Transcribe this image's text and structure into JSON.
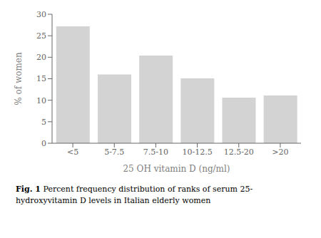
{
  "chart_data": {
    "type": "bar",
    "categories": [
      "<5",
      "5-7.5",
      "7.5-10",
      "10-12.5",
      "12.5-20",
      ">20"
    ],
    "values": [
      27.2,
      16.0,
      20.4,
      15.1,
      10.6,
      11.1
    ],
    "color": "#d3d3d3",
    "xlabel": "25 OH vitamin D (ng/ml)",
    "ylabel": "% of women",
    "ylim": [
      0,
      30
    ],
    "yticks": [
      0,
      5,
      10,
      15,
      20,
      25,
      30
    ],
    "annotations": [
      "Fig. 1",
      "Percent frequency distribution of ranks of serum 25-",
      "hydroxyvitamin D levels in Italian elderly women"
    ]
  }
}
